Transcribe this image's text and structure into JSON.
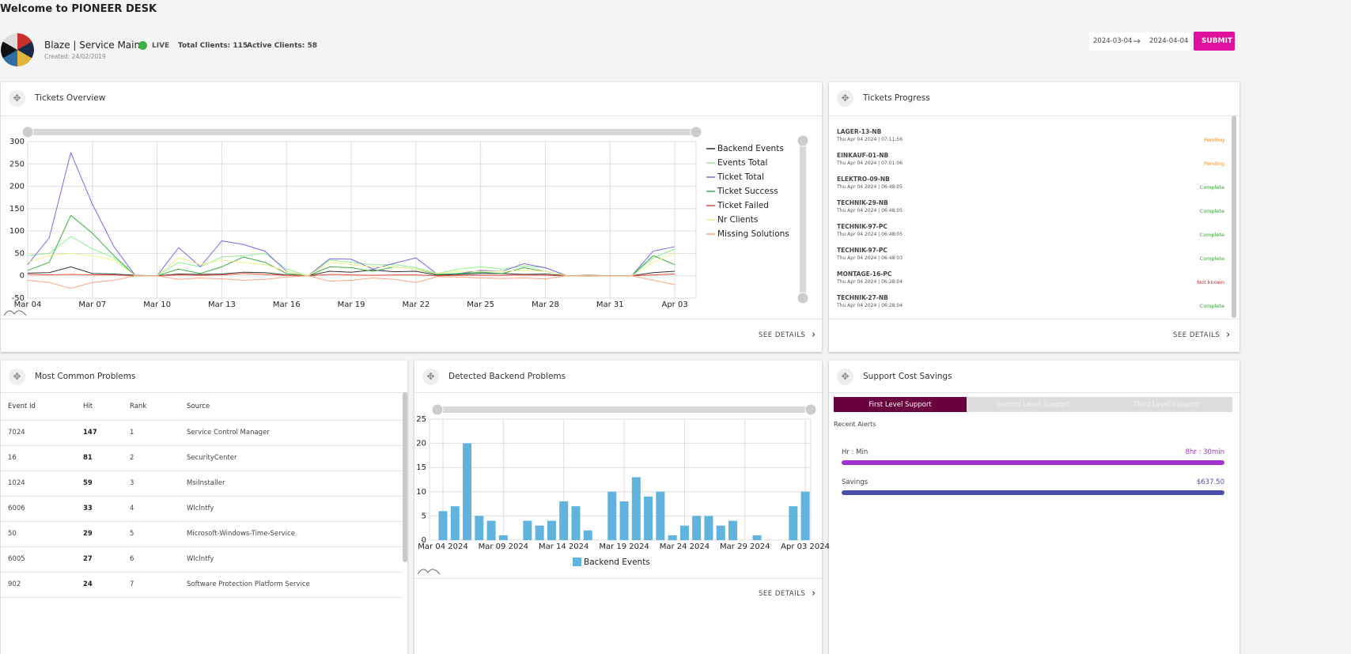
{
  "header": {
    "title": "Welcome to PIONEER DESK"
  },
  "org": {
    "name": "Blaze | Service Main",
    "created": "Created: 24/02/2019",
    "status": "LIVE",
    "total_clients": "Total Clients: 115",
    "active_clients": "Active Clients: 58"
  },
  "date_range": {
    "from": "2024-03-04",
    "to": "2024-04-04",
    "submit": "SUBMIT"
  },
  "tickets_overview": {
    "title": "Tickets Overview",
    "see_details": "SEE DETAILS"
  },
  "tickets_progress": {
    "title": "Tickets Progress",
    "see_details": "SEE DETAILS",
    "items": [
      {
        "name": "LAGER-13-NB",
        "date": "Thu Apr 04 2024 | 07:11:56",
        "status": "Pending",
        "status_color": "#f08a24"
      },
      {
        "name": "EINKAUF-01-NB",
        "date": "Thu Apr 04 2024 | 07:01:06",
        "status": "Pending",
        "status_color": "#f08a24"
      },
      {
        "name": "ELEKTRO-09-NB",
        "date": "Thu Apr 04 2024 | 06:48:05",
        "status": "Complete",
        "status_color": "#3a9d3a"
      },
      {
        "name": "TECHNIK-29-NB",
        "date": "Thu Apr 04 2024 | 06:48:05",
        "status": "Complete",
        "status_color": "#3a9d3a"
      },
      {
        "name": "TECHNIK-97-PC",
        "date": "Thu Apr 04 2024 | 06:48:05",
        "status": "Complete",
        "status_color": "#3a9d3a"
      },
      {
        "name": "TECHNIK-97-PC",
        "date": "Thu Apr 04 2024 | 06:48:03",
        "status": "Complete",
        "status_color": "#3a9d3a"
      },
      {
        "name": "MONTAGE-16-PC",
        "date": "Thu Apr 04 2024 | 06:28:04",
        "status": "Not known",
        "status_color": "#e02020"
      },
      {
        "name": "TECHNIK-27-NB",
        "date": "Thu Apr 04 2024 | 06:28:04",
        "status": "Complete",
        "status_color": "#3a9d3a"
      }
    ]
  },
  "most_common_problems": {
    "title": "Most Common Problems",
    "columns": [
      "Event Id",
      "Hit",
      "Rank",
      "Source"
    ],
    "rows": [
      [
        7024,
        147,
        1,
        "Service Control Manager"
      ],
      [
        16,
        81,
        2,
        "SecurityCenter"
      ],
      [
        1024,
        59,
        3,
        "MsiInstaller"
      ],
      [
        6006,
        33,
        4,
        "Wlclntfy"
      ],
      [
        50,
        29,
        5,
        "Microsoft-Windows-Time-Service"
      ],
      [
        6005,
        27,
        6,
        "Wlclntfy"
      ],
      [
        902,
        24,
        7,
        "Software Protection Platform Service"
      ]
    ]
  },
  "detected_backend_problems": {
    "title": "Detected Backend Problems",
    "see_details": "SEE DETAILS"
  },
  "support_cost_savings": {
    "title": "Support Cost Savings",
    "tabs": [
      "First Level Support",
      "Second Level Support",
      "Third Level Support"
    ],
    "active_tab": 0,
    "recent_alerts": "Recent Alerts",
    "metrics": [
      {
        "label": "Hr : Min",
        "value": "8hr : 30min",
        "color": "#a033d0"
      },
      {
        "label": "Savings",
        "value": "$637.50",
        "color": "#4b4fa8"
      }
    ]
  },
  "chart_data": [
    {
      "type": "line",
      "legend": "right",
      "grid": true,
      "categories": [
        "Mar 04",
        null,
        null,
        "Mar 07",
        null,
        null,
        "Mar 10",
        null,
        null,
        "Mar 13",
        null,
        null,
        "Mar 16",
        null,
        null,
        "Mar 19",
        null,
        null,
        "Mar 22",
        null,
        null,
        "Mar 25",
        null,
        null,
        "Mar 28",
        null,
        null,
        "Mar 31",
        null,
        null,
        "Apr 03"
      ],
      "ylim": [
        -50,
        300
      ],
      "yticks": [
        -50,
        0,
        50,
        100,
        150,
        200,
        250,
        300
      ],
      "series": [
        {
          "name": "Backend Events",
          "color": "#333333",
          "values": [
            6,
            7,
            20,
            5,
            4,
            1,
            0,
            4,
            3,
            4,
            8,
            7,
            2,
            0,
            10,
            8,
            13,
            9,
            10,
            1,
            3,
            5,
            5,
            3,
            4,
            0,
            1,
            0,
            0,
            7,
            10
          ]
        },
        {
          "name": "Events Total",
          "color": "#90ee90",
          "values": [
            45,
            50,
            88,
            60,
            40,
            0,
            0,
            30,
            20,
            42,
            45,
            50,
            15,
            0,
            35,
            30,
            25,
            25,
            18,
            5,
            15,
            20,
            15,
            22,
            18,
            0,
            0,
            0,
            0,
            40,
            60
          ]
        },
        {
          "name": "Ticket Total",
          "color": "#7b68ee",
          "values": [
            25,
            85,
            275,
            160,
            65,
            0,
            0,
            63,
            20,
            78,
            70,
            55,
            10,
            0,
            38,
            37,
            15,
            28,
            40,
            3,
            5,
            12,
            10,
            27,
            18,
            0,
            0,
            0,
            0,
            55,
            65
          ]
        },
        {
          "name": "Ticket Success",
          "color": "#3cb043",
          "values": [
            12,
            30,
            135,
            95,
            45,
            0,
            0,
            15,
            5,
            20,
            42,
            30,
            5,
            0,
            20,
            18,
            10,
            20,
            15,
            3,
            5,
            8,
            5,
            18,
            10,
            0,
            0,
            0,
            0,
            45,
            25
          ]
        },
        {
          "name": "Ticket Failed",
          "color": "#e74c3c",
          "values": [
            3,
            2,
            3,
            2,
            2,
            0,
            0,
            2,
            1,
            2,
            5,
            3,
            1,
            0,
            3,
            2,
            1,
            2,
            2,
            0,
            1,
            1,
            1,
            2,
            1,
            0,
            0,
            0,
            0,
            2,
            4
          ]
        },
        {
          "name": "Nr Clients",
          "color": "#f0f08a",
          "values": [
            30,
            45,
            50,
            45,
            35,
            0,
            0,
            40,
            25,
            35,
            30,
            25,
            10,
            0,
            30,
            25,
            20,
            20,
            15,
            5,
            10,
            10,
            10,
            12,
            10,
            0,
            0,
            0,
            0,
            30,
            50
          ]
        },
        {
          "name": "Missing Solutions",
          "color": "#f4a582",
          "values": [
            -10,
            -15,
            -28,
            -15,
            -10,
            0,
            0,
            -8,
            -5,
            -7,
            -10,
            -8,
            -3,
            0,
            -12,
            -10,
            -5,
            -8,
            -15,
            -2,
            -3,
            -5,
            -6,
            -5,
            -7,
            0,
            -1,
            0,
            0,
            -10,
            -20
          ]
        }
      ]
    },
    {
      "type": "bar",
      "legend": "bottom",
      "grid": true,
      "categories": [
        "Mar 04 2024",
        null,
        null,
        null,
        null,
        "Mar 09 2024",
        null,
        null,
        null,
        null,
        "Mar 14 2024",
        null,
        null,
        null,
        null,
        "Mar 19 2024",
        null,
        null,
        null,
        null,
        "Mar 24 2024",
        null,
        null,
        null,
        null,
        "Mar 29 2024",
        null,
        null,
        null,
        null,
        "Apr 03 2024"
      ],
      "ylim": [
        0,
        25
      ],
      "yticks": [
        0,
        5,
        10,
        15,
        20,
        25
      ],
      "series": [
        {
          "name": "Backend Events",
          "color": "#5fb3dd",
          "values": [
            6,
            7,
            20,
            5,
            4,
            1,
            0,
            4,
            3,
            4,
            8,
            7,
            2,
            0,
            10,
            8,
            13,
            9,
            10,
            1,
            3,
            5,
            5,
            3,
            4,
            0,
            1,
            0,
            0,
            7,
            10
          ]
        }
      ]
    }
  ]
}
